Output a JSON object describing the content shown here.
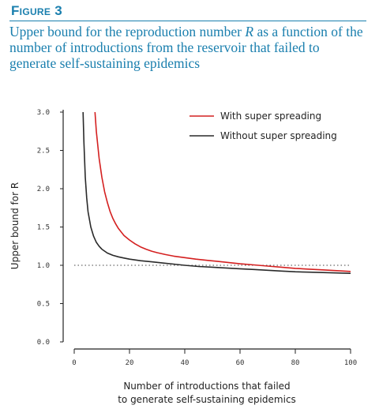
{
  "figure": {
    "label": "Figure 3",
    "title_pre": "Upper bound for the reproduction number ",
    "title_var": "R",
    "title_post": " as a function of the number of introductions from the reservoir that failed to generate self-sustaining epidemics"
  },
  "chart_data": {
    "type": "line",
    "xlabel_line1": "Number of introductions that failed",
    "xlabel_line2": "to generate self-sustaining epidemics",
    "ylabel": "Upper bound for R",
    "xlim": [
      0,
      100
    ],
    "ylim": [
      0.0,
      3.0
    ],
    "x_ticks": [
      "0",
      "20",
      "40",
      "60",
      "80",
      "100"
    ],
    "y_ticks": [
      "0.0",
      "0.5",
      "1.0",
      "1.5",
      "2.0",
      "2.5",
      "3.0"
    ],
    "reference_line": {
      "y": 1.0,
      "style": "dotted"
    },
    "legend_position": "top-right",
    "series": [
      {
        "name": "With super spreading",
        "color": "#d42020",
        "x": [
          7.5,
          8,
          9,
          10,
          11,
          12,
          13,
          14,
          15,
          16,
          18,
          20,
          22,
          24,
          26,
          28,
          30,
          33,
          36,
          40,
          44,
          48,
          52,
          56,
          60,
          65,
          70,
          75,
          80,
          85,
          90,
          95,
          100
        ],
        "y": [
          3.0,
          2.75,
          2.4,
          2.15,
          1.96,
          1.82,
          1.7,
          1.61,
          1.54,
          1.48,
          1.39,
          1.33,
          1.28,
          1.24,
          1.21,
          1.185,
          1.165,
          1.14,
          1.12,
          1.1,
          1.08,
          1.065,
          1.05,
          1.035,
          1.02,
          1.005,
          0.99,
          0.975,
          0.96,
          0.95,
          0.94,
          0.93,
          0.92
        ]
      },
      {
        "name": "Without super spreading",
        "color": "#2a2a2a",
        "x": [
          3.2,
          3.5,
          4,
          4.5,
          5,
          6,
          7,
          8,
          9,
          10,
          12,
          14,
          16,
          18,
          20,
          24,
          28,
          32,
          36,
          40,
          45,
          50,
          55,
          60,
          65,
          70,
          75,
          80,
          85,
          90,
          95,
          100
        ],
        "y": [
          3.0,
          2.6,
          2.15,
          1.88,
          1.7,
          1.5,
          1.38,
          1.3,
          1.25,
          1.21,
          1.16,
          1.13,
          1.11,
          1.095,
          1.08,
          1.06,
          1.045,
          1.03,
          1.015,
          1.0,
          0.985,
          0.975,
          0.965,
          0.955,
          0.945,
          0.935,
          0.925,
          0.915,
          0.91,
          0.905,
          0.9,
          0.895
        ]
      }
    ]
  }
}
